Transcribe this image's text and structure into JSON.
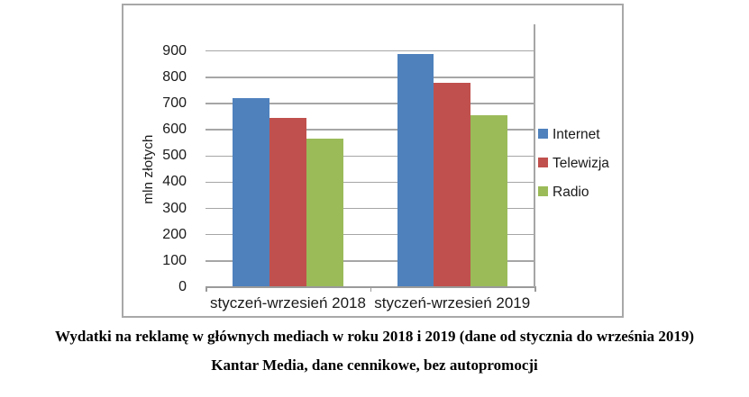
{
  "chart_data": {
    "type": "bar",
    "title": "",
    "ylabel": "mln złotych",
    "categories": [
      "styczeń-wrzesień 2018",
      "styczeń-wrzesień 2019"
    ],
    "series": [
      {
        "name": "Internet",
        "color": "#4F81BD",
        "values": [
          720,
          890
        ]
      },
      {
        "name": "Telewizja",
        "color": "#C0504D",
        "values": [
          645,
          780
        ]
      },
      {
        "name": "Radio",
        "color": "#9BBB59",
        "values": [
          565,
          655
        ]
      }
    ],
    "ylim": [
      0,
      900
    ],
    "yticks": [
      0,
      100,
      200,
      300,
      400,
      500,
      600,
      700,
      800,
      900
    ],
    "grid": "horizontal",
    "legend_position": "right"
  },
  "caption": {
    "line1": "Wydatki na reklamę w głównych mediach w roku 2018 i 2019 (dane od stycznia do września 2019)",
    "line2": "Kantar Media, dane cennikowe, bez autopromocji"
  },
  "colors": {
    "gridline": "#a6a6a6",
    "axis": "#9a9a9a",
    "frame_border": "#a8a8a8",
    "text": "#1a1a1a"
  }
}
